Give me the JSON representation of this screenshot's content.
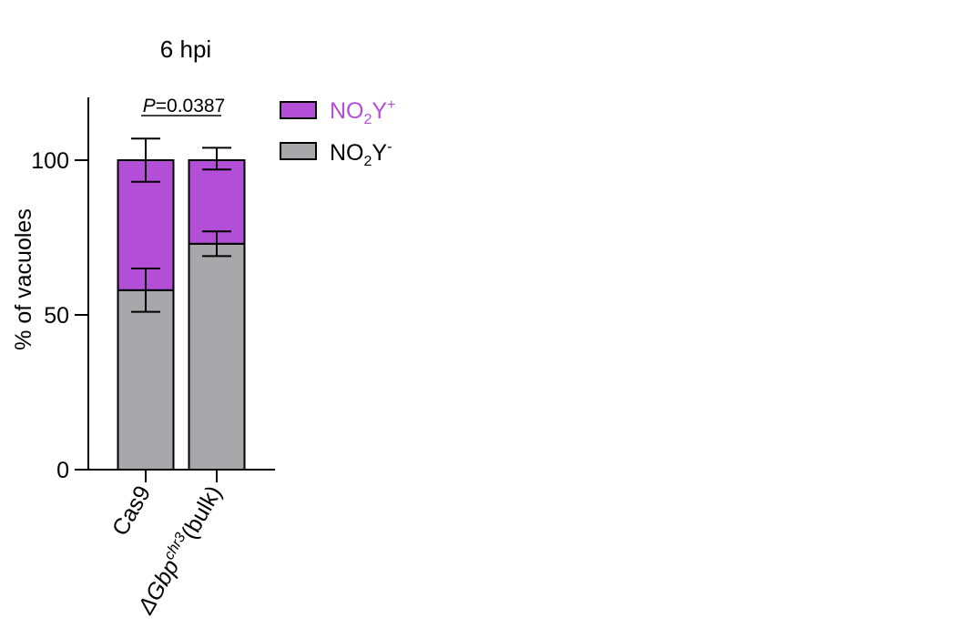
{
  "chart_data": {
    "type": "bar",
    "stacked": true,
    "title": "6 hpi",
    "ylabel": "% of vacuoles",
    "ylim": [
      0,
      120
    ],
    "yticks": [
      0,
      50,
      100
    ],
    "categories": [
      {
        "label": "Cas9"
      },
      {
        "label_parts": {
          "delta": "Δ",
          "gene": "Gbp",
          "sup": "chr3",
          "suffix": "(bulk)"
        }
      }
    ],
    "series": [
      {
        "name": "NO2Y-",
        "name_parts": {
          "base": "NO",
          "sub": "2",
          "mid": "Y",
          "sup": "-"
        },
        "color": "#a8a8aa",
        "values": [
          58,
          73
        ],
        "error_high": [
          65,
          77
        ],
        "error_low": [
          51,
          69
        ]
      },
      {
        "name": "NO2Y+",
        "name_parts": {
          "base": "NO",
          "sub": "2",
          "mid": "Y",
          "sup": "+"
        },
        "color": "#b24fd6",
        "values": [
          42,
          27
        ],
        "error_high": [
          107,
          104
        ],
        "error_low": [
          93,
          97
        ]
      }
    ],
    "annotation": {
      "prefix": "P",
      "text": "=0.0387"
    },
    "legend_position": "right"
  }
}
